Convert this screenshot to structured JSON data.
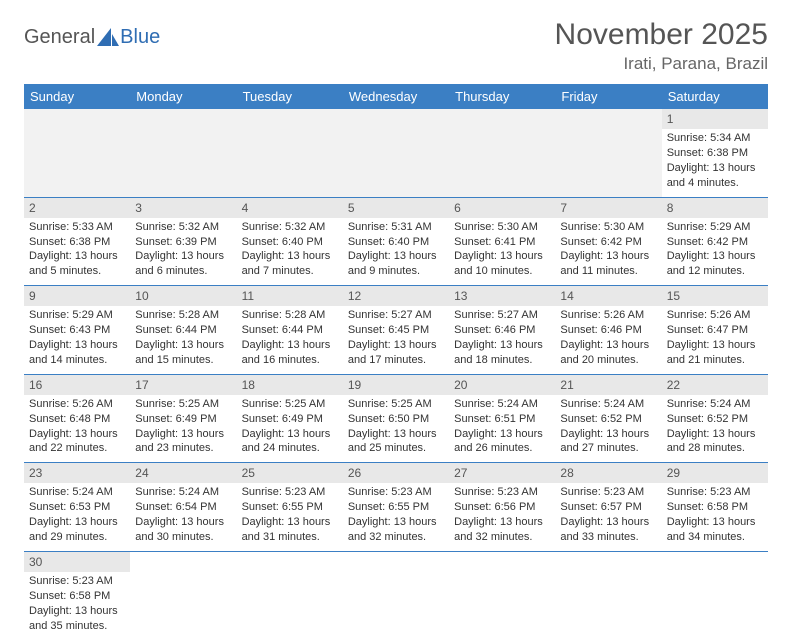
{
  "logo": {
    "textA": "General",
    "textB": "Blue"
  },
  "title": "November 2025",
  "location": "Irati, Parana, Brazil",
  "colors": {
    "header_bg": "#3b7fc4",
    "header_text": "#ffffff",
    "daynum_bg": "#e8e8e8",
    "border": "#3b7fc4",
    "empty_bg": "#f2f2f2",
    "body_text": "#333333",
    "title_text": "#555555"
  },
  "dayNames": [
    "Sunday",
    "Monday",
    "Tuesday",
    "Wednesday",
    "Thursday",
    "Friday",
    "Saturday"
  ],
  "leadingEmpty": 6,
  "days": [
    {
      "n": 1,
      "sunrise": "5:34 AM",
      "sunset": "6:38 PM",
      "dl1": "13 hours",
      "dl2": "and 4 minutes."
    },
    {
      "n": 2,
      "sunrise": "5:33 AM",
      "sunset": "6:38 PM",
      "dl1": "13 hours",
      "dl2": "and 5 minutes."
    },
    {
      "n": 3,
      "sunrise": "5:32 AM",
      "sunset": "6:39 PM",
      "dl1": "13 hours",
      "dl2": "and 6 minutes."
    },
    {
      "n": 4,
      "sunrise": "5:32 AM",
      "sunset": "6:40 PM",
      "dl1": "13 hours",
      "dl2": "and 7 minutes."
    },
    {
      "n": 5,
      "sunrise": "5:31 AM",
      "sunset": "6:40 PM",
      "dl1": "13 hours",
      "dl2": "and 9 minutes."
    },
    {
      "n": 6,
      "sunrise": "5:30 AM",
      "sunset": "6:41 PM",
      "dl1": "13 hours",
      "dl2": "and 10 minutes."
    },
    {
      "n": 7,
      "sunrise": "5:30 AM",
      "sunset": "6:42 PM",
      "dl1": "13 hours",
      "dl2": "and 11 minutes."
    },
    {
      "n": 8,
      "sunrise": "5:29 AM",
      "sunset": "6:42 PM",
      "dl1": "13 hours",
      "dl2": "and 12 minutes."
    },
    {
      "n": 9,
      "sunrise": "5:29 AM",
      "sunset": "6:43 PM",
      "dl1": "13 hours",
      "dl2": "and 14 minutes."
    },
    {
      "n": 10,
      "sunrise": "5:28 AM",
      "sunset": "6:44 PM",
      "dl1": "13 hours",
      "dl2": "and 15 minutes."
    },
    {
      "n": 11,
      "sunrise": "5:28 AM",
      "sunset": "6:44 PM",
      "dl1": "13 hours",
      "dl2": "and 16 minutes."
    },
    {
      "n": 12,
      "sunrise": "5:27 AM",
      "sunset": "6:45 PM",
      "dl1": "13 hours",
      "dl2": "and 17 minutes."
    },
    {
      "n": 13,
      "sunrise": "5:27 AM",
      "sunset": "6:46 PM",
      "dl1": "13 hours",
      "dl2": "and 18 minutes."
    },
    {
      "n": 14,
      "sunrise": "5:26 AM",
      "sunset": "6:46 PM",
      "dl1": "13 hours",
      "dl2": "and 20 minutes."
    },
    {
      "n": 15,
      "sunrise": "5:26 AM",
      "sunset": "6:47 PM",
      "dl1": "13 hours",
      "dl2": "and 21 minutes."
    },
    {
      "n": 16,
      "sunrise": "5:26 AM",
      "sunset": "6:48 PM",
      "dl1": "13 hours",
      "dl2": "and 22 minutes."
    },
    {
      "n": 17,
      "sunrise": "5:25 AM",
      "sunset": "6:49 PM",
      "dl1": "13 hours",
      "dl2": "and 23 minutes."
    },
    {
      "n": 18,
      "sunrise": "5:25 AM",
      "sunset": "6:49 PM",
      "dl1": "13 hours",
      "dl2": "and 24 minutes."
    },
    {
      "n": 19,
      "sunrise": "5:25 AM",
      "sunset": "6:50 PM",
      "dl1": "13 hours",
      "dl2": "and 25 minutes."
    },
    {
      "n": 20,
      "sunrise": "5:24 AM",
      "sunset": "6:51 PM",
      "dl1": "13 hours",
      "dl2": "and 26 minutes."
    },
    {
      "n": 21,
      "sunrise": "5:24 AM",
      "sunset": "6:52 PM",
      "dl1": "13 hours",
      "dl2": "and 27 minutes."
    },
    {
      "n": 22,
      "sunrise": "5:24 AM",
      "sunset": "6:52 PM",
      "dl1": "13 hours",
      "dl2": "and 28 minutes."
    },
    {
      "n": 23,
      "sunrise": "5:24 AM",
      "sunset": "6:53 PM",
      "dl1": "13 hours",
      "dl2": "and 29 minutes."
    },
    {
      "n": 24,
      "sunrise": "5:24 AM",
      "sunset": "6:54 PM",
      "dl1": "13 hours",
      "dl2": "and 30 minutes."
    },
    {
      "n": 25,
      "sunrise": "5:23 AM",
      "sunset": "6:55 PM",
      "dl1": "13 hours",
      "dl2": "and 31 minutes."
    },
    {
      "n": 26,
      "sunrise": "5:23 AM",
      "sunset": "6:55 PM",
      "dl1": "13 hours",
      "dl2": "and 32 minutes."
    },
    {
      "n": 27,
      "sunrise": "5:23 AM",
      "sunset": "6:56 PM",
      "dl1": "13 hours",
      "dl2": "and 32 minutes."
    },
    {
      "n": 28,
      "sunrise": "5:23 AM",
      "sunset": "6:57 PM",
      "dl1": "13 hours",
      "dl2": "and 33 minutes."
    },
    {
      "n": 29,
      "sunrise": "5:23 AM",
      "sunset": "6:58 PM",
      "dl1": "13 hours",
      "dl2": "and 34 minutes."
    },
    {
      "n": 30,
      "sunrise": "5:23 AM",
      "sunset": "6:58 PM",
      "dl1": "13 hours",
      "dl2": "and 35 minutes."
    }
  ],
  "labels": {
    "sunrise": "Sunrise: ",
    "sunset": "Sunset: ",
    "daylight": "Daylight: "
  }
}
